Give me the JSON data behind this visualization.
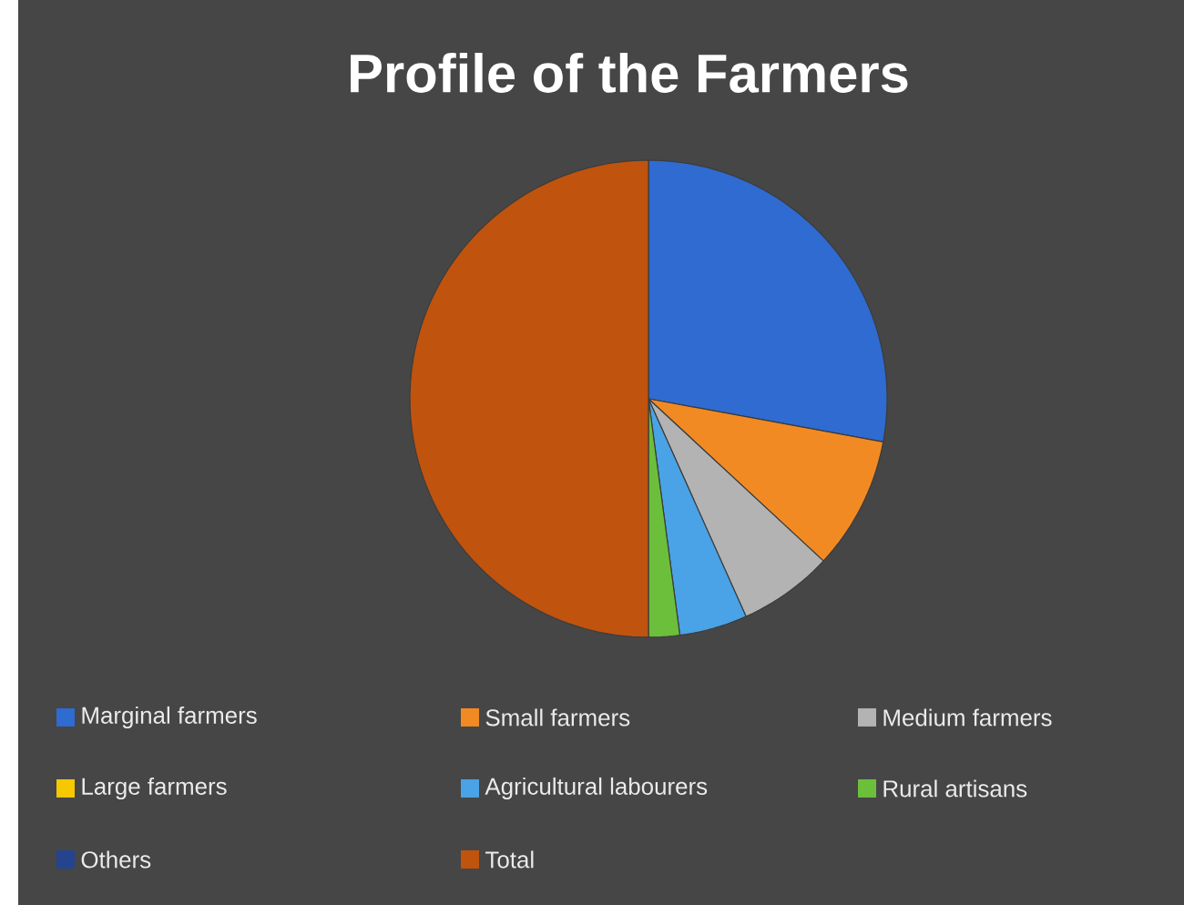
{
  "chart_data": {
    "type": "pie",
    "title": "Profile of the Farmers",
    "categories": [
      "Marginal farmers",
      "Small farmers",
      "Medium farmers",
      "Large farmers",
      "Agricultural labourers",
      "Rural artisans",
      "Others",
      "Total"
    ],
    "values": [
      27.9,
      9.0,
      6.4,
      0,
      4.6,
      2.1,
      0,
      50.0
    ],
    "colors": [
      "#2f6bd0",
      "#f28a24",
      "#b3b3b3",
      "#f5c800",
      "#4aa3e6",
      "#6cbf3a",
      "#24448f",
      "#c0530e"
    ],
    "legend": "bottom"
  }
}
